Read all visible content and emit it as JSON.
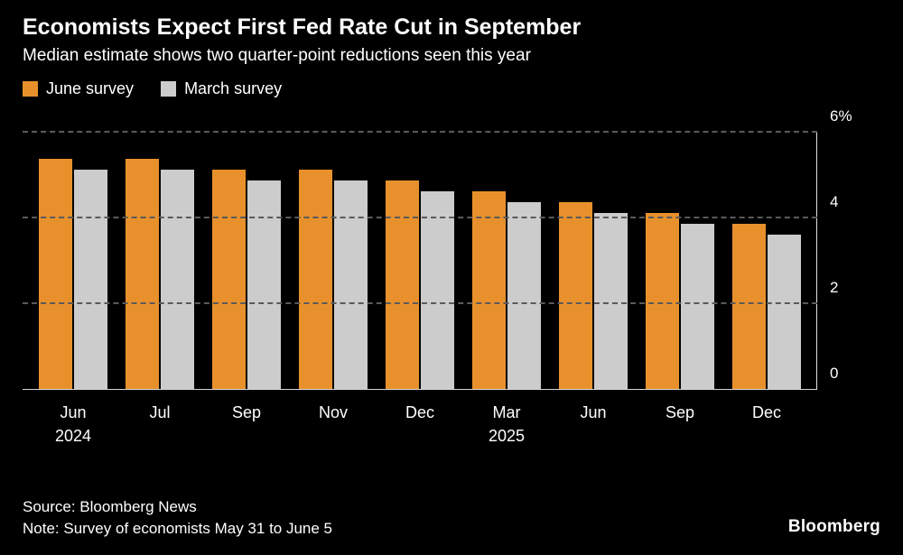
{
  "header": {
    "title": "Economists Expect First Fed Rate Cut in September",
    "subtitle": "Median estimate shows two quarter-point reductions seen this year"
  },
  "legend": [
    {
      "label": "June survey",
      "color": "#E8912C"
    },
    {
      "label": "March survey",
      "color": "#CCCCCC"
    }
  ],
  "chart_data": {
    "type": "bar",
    "categories": [
      {
        "month": "Jun",
        "year": "2024"
      },
      {
        "month": "Jul",
        "year": ""
      },
      {
        "month": "Sep",
        "year": ""
      },
      {
        "month": "Nov",
        "year": ""
      },
      {
        "month": "Dec",
        "year": ""
      },
      {
        "month": "Mar",
        "year": "2025"
      },
      {
        "month": "Jun",
        "year": ""
      },
      {
        "month": "Sep",
        "year": ""
      },
      {
        "month": "Dec",
        "year": ""
      }
    ],
    "series": [
      {
        "name": "June survey",
        "color": "#E8912C",
        "values": [
          5.375,
          5.375,
          5.125,
          5.125,
          4.875,
          4.625,
          4.375,
          4.125,
          3.875
        ]
      },
      {
        "name": "March survey",
        "color": "#CCCCCC",
        "values": [
          5.125,
          5.125,
          4.875,
          4.875,
          4.625,
          4.375,
          4.125,
          3.875,
          3.625
        ]
      }
    ],
    "ylabel": "%",
    "ylim": [
      0,
      6
    ],
    "yticks": [
      {
        "value": 6,
        "label": "6%"
      },
      {
        "value": 4,
        "label": "4"
      },
      {
        "value": 2,
        "label": "2"
      },
      {
        "value": 0,
        "label": "0"
      }
    ],
    "grid": "dashed-horizontal",
    "legend_position": "top-left"
  },
  "footer": {
    "source": "Source: Bloomberg News",
    "note": "Note: Survey of economists May 31 to June 5",
    "brand": "Bloomberg"
  }
}
